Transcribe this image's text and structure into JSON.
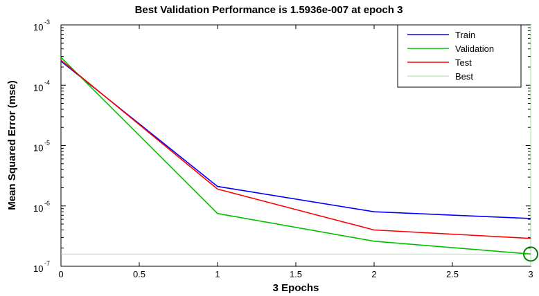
{
  "chart_data": {
    "type": "line",
    "title": "Best Validation Performance is 1.5936e-007 at epoch 3",
    "xlabel": "3 Epochs",
    "ylabel": "Mean Squared Error  (mse)",
    "xlim": [
      0,
      3
    ],
    "ylim": [
      1e-07,
      0.001
    ],
    "yscale": "log",
    "x_ticks": [
      {
        "value": 0,
        "label": "0"
      },
      {
        "value": 0.5,
        "label": "0.5"
      },
      {
        "value": 1,
        "label": "1"
      },
      {
        "value": 1.5,
        "label": "1.5"
      },
      {
        "value": 2,
        "label": "2"
      },
      {
        "value": 2.5,
        "label": "2.5"
      },
      {
        "value": 3,
        "label": "3"
      }
    ],
    "y_ticks": [
      {
        "value": 1e-07,
        "base": "10",
        "exp": "-7"
      },
      {
        "value": 1e-06,
        "base": "10",
        "exp": "-6"
      },
      {
        "value": 1e-05,
        "base": "10",
        "exp": "-5"
      },
      {
        "value": 0.0001,
        "base": "10",
        "exp": "-4"
      },
      {
        "value": 0.001,
        "base": "10",
        "exp": "-3"
      }
    ],
    "x": [
      0,
      1,
      2,
      3
    ],
    "series": [
      {
        "name": "Train",
        "color": "#0000ff",
        "values": [
          0.00025,
          2.1e-06,
          8e-07,
          6.2e-07
        ]
      },
      {
        "name": "Validation",
        "color": "#00c000",
        "values": [
          0.00029,
          7.5e-07,
          2.6e-07,
          1.5936e-07
        ]
      },
      {
        "name": "Test",
        "color": "#ff0000",
        "values": [
          0.00026,
          1.9e-06,
          4e-07,
          2.9e-07
        ]
      }
    ],
    "best": {
      "name": "Best",
      "epoch": 3,
      "value": 1.5936e-07,
      "color": "#a8d8a8",
      "marker_color": "#008000"
    },
    "legend": {
      "location": "top-right",
      "items": [
        "Train",
        "Validation",
        "Test",
        "Best"
      ]
    },
    "grid": false
  }
}
